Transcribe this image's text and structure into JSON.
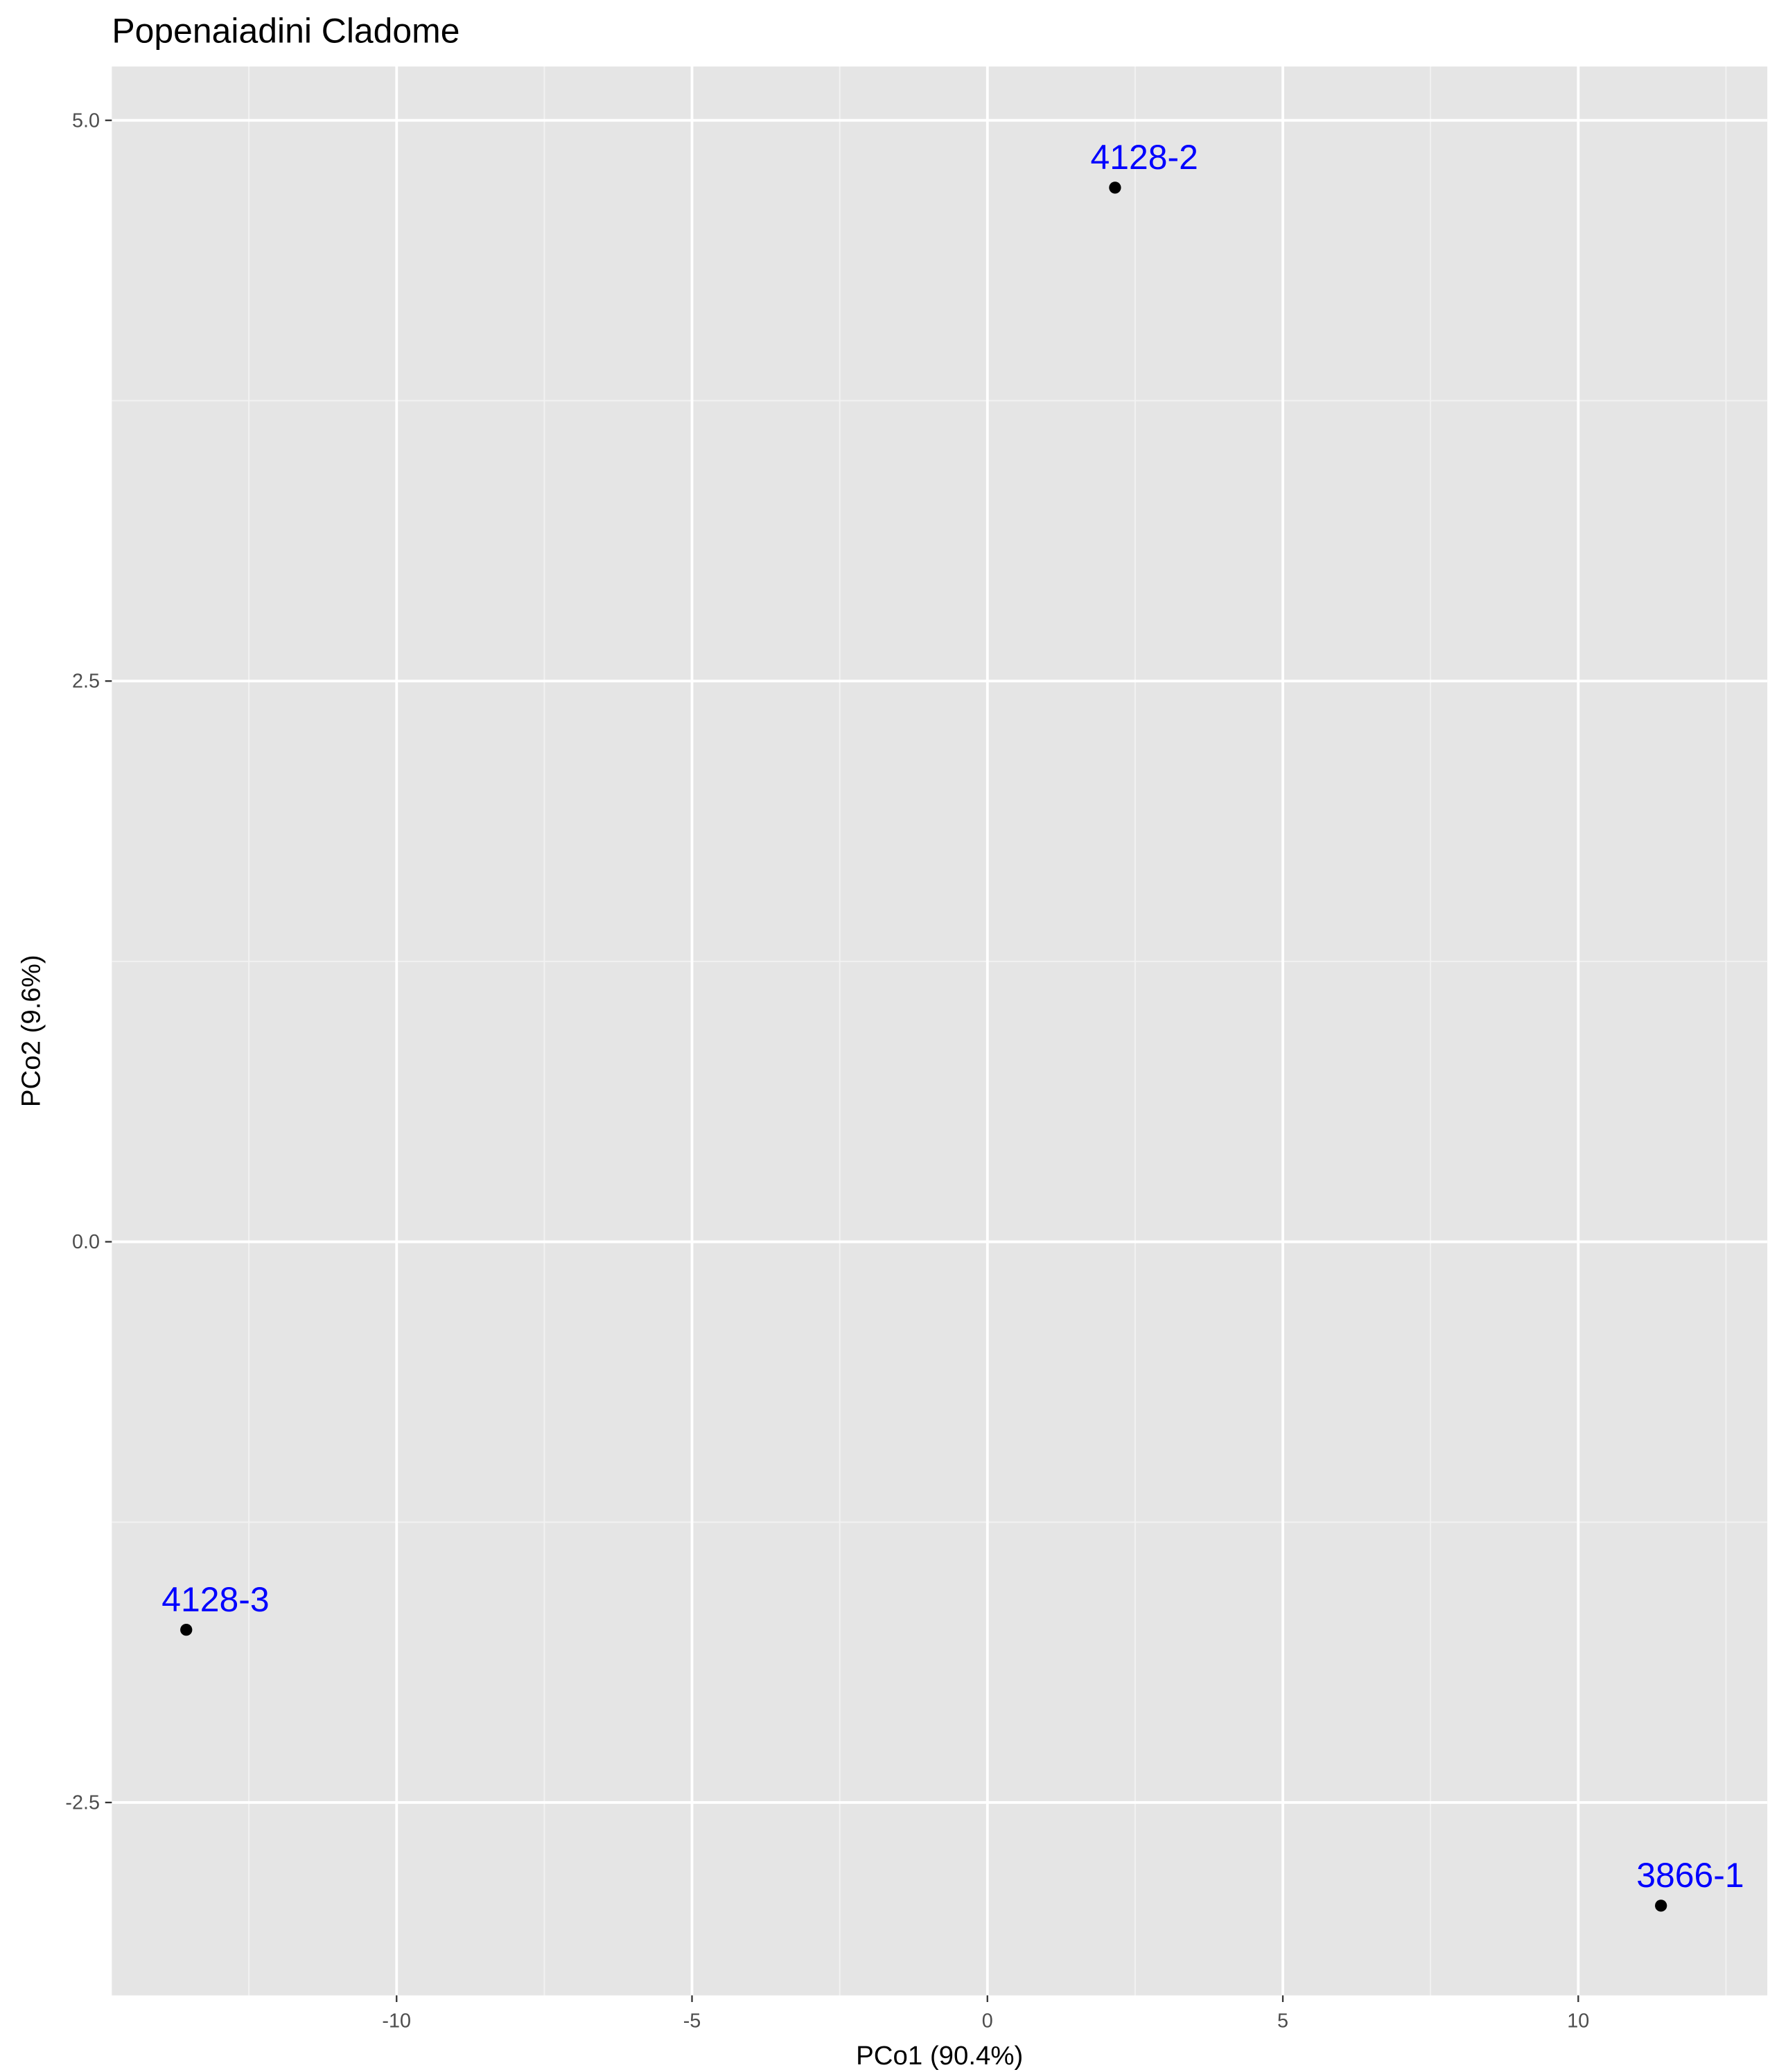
{
  "chart_data": {
    "type": "scatter",
    "title": "Popenaiadini Cladome",
    "x_label": "PCo1 (90.4%)",
    "y_label": "PCo2 (9.6%)",
    "x": [
      2.16,
      -13.56,
      11.4
    ],
    "y": [
      4.7,
      -1.73,
      -2.96
    ],
    "point_labels": [
      "4128-2",
      "4128-3",
      "3866-1"
    ],
    "color": "#000000",
    "label_color": "#0000ff",
    "xlim": [
      -14.82,
      13.2
    ],
    "ylim": [
      -3.36,
      5.24
    ],
    "xticks": [
      -10,
      -5,
      0,
      5,
      10
    ],
    "yticks": [
      {
        "value": -2.5,
        "label": "-2.5"
      },
      {
        "value": 0,
        "label": "0.0"
      },
      {
        "value": 2.5,
        "label": "2.5"
      },
      {
        "value": 5,
        "label": "5.0"
      }
    ],
    "grid": true
  }
}
